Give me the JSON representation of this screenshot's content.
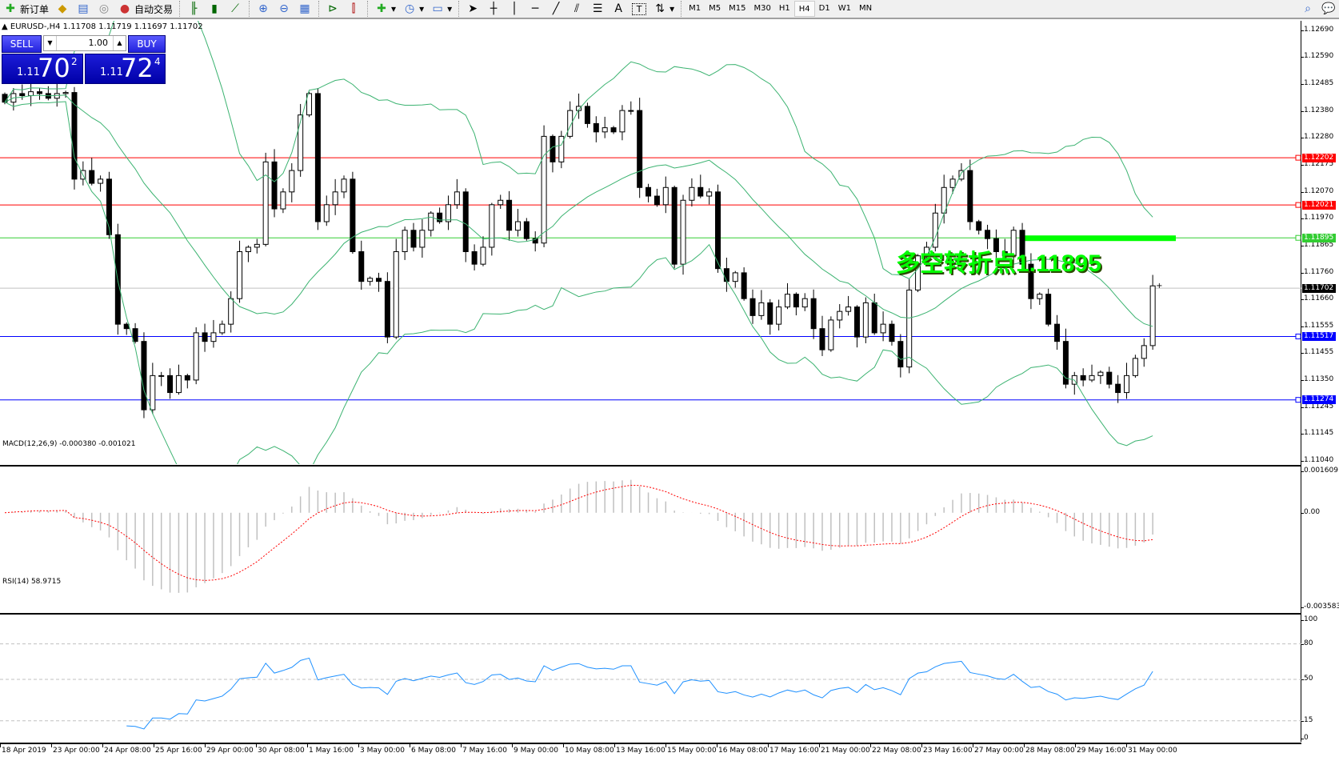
{
  "toolbar": {
    "new_order": "新订单",
    "auto_trading": "自动交易",
    "icons": [
      "new-order-icon",
      "market-watch-icon",
      "navigator-icon",
      "signals-icon",
      "auto-trading-icon",
      "bar-chart-icon",
      "candlestick-icon",
      "line-chart-icon",
      "zoom-in-icon",
      "zoom-out-icon",
      "tile-windows-icon",
      "autoscroll-icon",
      "chart-shift-icon",
      "indicators-icon",
      "periods-icon",
      "templates-icon",
      "cursor-icon",
      "crosshair-icon",
      "vertical-line-icon",
      "horizontal-line-icon",
      "trendline-icon",
      "equidistant-channel-icon",
      "fibonacci-icon",
      "text-icon",
      "text-label-icon",
      "arrows-icon"
    ],
    "timeframes": [
      "M1",
      "M5",
      "M15",
      "M30",
      "H1",
      "H4",
      "D1",
      "W1",
      "MN"
    ],
    "active_timeframe": "H4",
    "text_tool": "A",
    "label_tool": "T"
  },
  "chart": {
    "header": "EURUSD-,H4  1.11708 1.11719 1.11697 1.11702",
    "trade_panel": {
      "sell": "SELL",
      "buy": "BUY",
      "lot": "1.00",
      "bid_prefix": "1.11",
      "bid_big": "70",
      "bid_sup": "2",
      "ask_prefix": "1.11",
      "ask_big": "72",
      "ask_sup": "4"
    },
    "annotation": "多空转折点1.11895",
    "price_ticks": [
      "1.12690",
      "1.12590",
      "1.12485",
      "1.12380",
      "1.12280",
      "1.12175",
      "1.12070",
      "1.11970",
      "1.11865",
      "1.11760",
      "1.11660",
      "1.11555",
      "1.11455",
      "1.11350",
      "1.11245",
      "1.11145",
      "1.11040"
    ],
    "price_range": [
      1.1104,
      1.1269
    ],
    "levels": [
      {
        "price": "1.12202",
        "color": "#ff0000"
      },
      {
        "price": "1.12021",
        "color": "#ff0000"
      },
      {
        "price": "1.11895",
        "color": "#32cd32"
      },
      {
        "price": "1.11702",
        "color": "#000000",
        "line": "#c0c0c0"
      },
      {
        "price": "1.11517",
        "color": "#0000ff"
      },
      {
        "price": "1.11274",
        "color": "#0000ff"
      }
    ],
    "closes": [
      1.12415,
      1.12448,
      1.1244,
      1.12455,
      1.12448,
      1.1243,
      1.12448,
      1.12452,
      1.1212,
      1.12153,
      1.12104,
      1.1212,
      1.11907,
      1.11564,
      1.11547,
      1.11498,
      1.11236,
      1.11367,
      1.11367,
      1.11302,
      1.11367,
      1.1135,
      1.11531,
      1.11498,
      1.11531,
      1.11564,
      1.11662,
      1.11842,
      1.11859,
      1.1187,
      1.12186,
      1.12006,
      1.12071,
      1.12153,
      1.12366,
      1.12448,
      1.11957,
      1.12022,
      1.12071,
      1.1212,
      1.11842,
      1.11728,
      1.1174,
      1.11728,
      1.11515,
      1.11842,
      1.11924,
      1.11859,
      1.11924,
      1.1199,
      1.11957,
      1.12022,
      1.12071,
      1.11842,
      1.11794,
      1.11859,
      1.12022,
      1.12039,
      1.11924,
      1.11957,
      1.11892,
      1.11875,
      1.12284,
      1.12186,
      1.12284,
      1.12383,
      1.12399,
      1.12333,
      1.12301,
      1.12317,
      1.12301,
      1.12383,
      1.12383,
      1.12088,
      1.12055,
      1.12022,
      1.12088,
      1.11794,
      1.12039,
      1.12088,
      1.12055,
      1.12071,
      1.11777,
      1.11728,
      1.11761,
      1.11662,
      1.11597,
      1.11646,
      1.11564,
      1.1163,
      1.11679,
      1.1163,
      1.11662,
      1.11547,
      1.11466,
      1.1158,
      1.11613,
      1.1163,
      1.11515,
      1.11646,
      1.11531,
      1.11564,
      1.11498,
      1.114,
      1.11695,
      1.11826,
      1.11859,
      1.1199,
      1.12088,
      1.1212,
      1.12153,
      1.11957,
      1.11924,
      1.11892,
      1.11842,
      1.11826,
      1.11924,
      1.11794,
      1.11662,
      1.11679,
      1.11564,
      1.11498,
      1.11334,
      1.11367,
      1.1135,
      1.11367,
      1.1138,
      1.11334,
      1.11302,
      1.11367,
      1.11433,
      1.11482,
      1.11711
    ],
    "bollinger_color": "#3cb371",
    "candle_color": "#000000"
  },
  "macd": {
    "label": "MACD(12,26,9) -0.000380 -0.001021",
    "max": "0.001609",
    "zero": "0.00",
    "min": "-0.003583",
    "signal_color": "#ff0000",
    "hist_color": "#c0c0c0"
  },
  "rsi": {
    "label": "RSI(14) 58.9715",
    "levels": [
      "100",
      "80",
      "50",
      "15",
      "0"
    ],
    "line_color": "#1e90ff"
  },
  "time_labels": [
    "18 Apr 2019",
    "23 Apr 00:00",
    "24 Apr 08:00",
    "25 Apr 16:00",
    "29 Apr 00:00",
    "30 Apr 08:00",
    "1 May 16:00",
    "3 May 00:00",
    "6 May 08:00",
    "7 May 16:00",
    "9 May 00:00",
    "10 May 08:00",
    "13 May 16:00",
    "15 May 00:00",
    "16 May 08:00",
    "17 May 16:00",
    "21 May 00:00",
    "22 May 08:00",
    "23 May 16:00",
    "27 May 00:00",
    "28 May 08:00",
    "29 May 16:00",
    "31 May 00:00"
  ]
}
